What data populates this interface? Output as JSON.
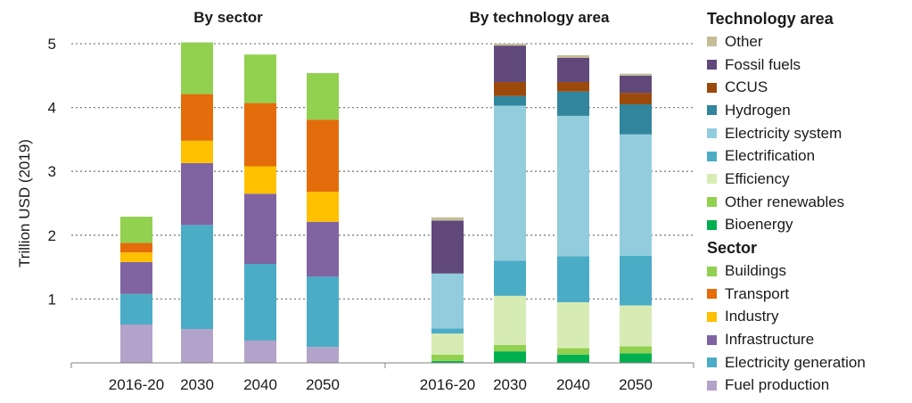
{
  "chart_data": {
    "type": "bar",
    "stacked": true,
    "ylabel": "Trillion USD (2019)",
    "ylim": [
      0,
      5
    ],
    "yticks": [
      1,
      2,
      3,
      4,
      5
    ],
    "grid": true,
    "legend_placement": "right",
    "panels": [
      {
        "title": "By sector",
        "categories": [
          "2016-20",
          "2030",
          "2040",
          "2050"
        ],
        "series": [
          {
            "name": "Fuel production",
            "color": "#b3a2c9",
            "values": [
              0.6,
              0.53,
              0.35,
              0.25
            ]
          },
          {
            "name": "Electricity generation",
            "color": "#4bacc6",
            "values": [
              0.48,
              1.63,
              1.2,
              1.1
            ]
          },
          {
            "name": "Infrastructure",
            "color": "#8064a2",
            "values": [
              0.5,
              0.97,
              1.1,
              0.86
            ]
          },
          {
            "name": "Industry",
            "color": "#ffc000",
            "values": [
              0.15,
              0.35,
              0.43,
              0.47
            ]
          },
          {
            "name": "Transport",
            "color": "#e46c0a",
            "values": [
              0.15,
              0.73,
              0.99,
              1.13
            ]
          },
          {
            "name": "Buildings",
            "color": "#92d050",
            "values": [
              0.41,
              0.81,
              0.76,
              0.73
            ]
          }
        ]
      },
      {
        "title": "By technology area",
        "categories": [
          "2016-20",
          "2030",
          "2040",
          "2050"
        ],
        "series": [
          {
            "name": "Bioenergy",
            "color": "#00b050",
            "values": [
              0.03,
              0.18,
              0.13,
              0.15
            ]
          },
          {
            "name": "Other renewables",
            "color": "#92d050",
            "values": [
              0.1,
              0.1,
              0.1,
              0.11
            ]
          },
          {
            "name": "Efficiency",
            "color": "#d7ecb4",
            "values": [
              0.33,
              0.77,
              0.72,
              0.64
            ]
          },
          {
            "name": "Electrification",
            "color": "#4bacc6",
            "values": [
              0.08,
              0.55,
              0.72,
              0.78
            ]
          },
          {
            "name": "Electricity system",
            "color": "#93cddd",
            "values": [
              0.86,
              2.43,
              2.2,
              1.9
            ]
          },
          {
            "name": "Hydrogen",
            "color": "#31859c",
            "values": [
              0.0,
              0.15,
              0.38,
              0.47
            ]
          },
          {
            "name": "CCUS",
            "color": "#9c4a0c",
            "values": [
              0.0,
              0.22,
              0.15,
              0.18
            ]
          },
          {
            "name": "Fossil fuels",
            "color": "#60497a",
            "values": [
              0.83,
              0.57,
              0.38,
              0.27
            ]
          },
          {
            "name": "Other",
            "color": "#c4bd97",
            "values": [
              0.05,
              0.03,
              0.04,
              0.03
            ]
          }
        ]
      }
    ]
  },
  "legend": {
    "technology_title": "Technology area",
    "technology_items": [
      {
        "label": "Other",
        "color": "#c4bd97"
      },
      {
        "label": "Fossil fuels",
        "color": "#60497a"
      },
      {
        "label": "CCUS",
        "color": "#9c4a0c"
      },
      {
        "label": "Hydrogen",
        "color": "#31859c"
      },
      {
        "label": "Electricity system",
        "color": "#93cddd"
      },
      {
        "label": "Electrification",
        "color": "#4bacc6"
      },
      {
        "label": "Efficiency",
        "color": "#d7ecb4"
      },
      {
        "label": "Other renewables",
        "color": "#92d050"
      },
      {
        "label": "Bioenergy",
        "color": "#00b050"
      }
    ],
    "sector_title": "Sector",
    "sector_items": [
      {
        "label": "Buildings",
        "color": "#92d050"
      },
      {
        "label": "Transport",
        "color": "#e46c0a"
      },
      {
        "label": "Industry",
        "color": "#ffc000"
      },
      {
        "label": "Infrastructure",
        "color": "#8064a2"
      },
      {
        "label": "Electricity generation",
        "color": "#4bacc6"
      },
      {
        "label": "Fuel production",
        "color": "#b3a2c9"
      }
    ]
  }
}
